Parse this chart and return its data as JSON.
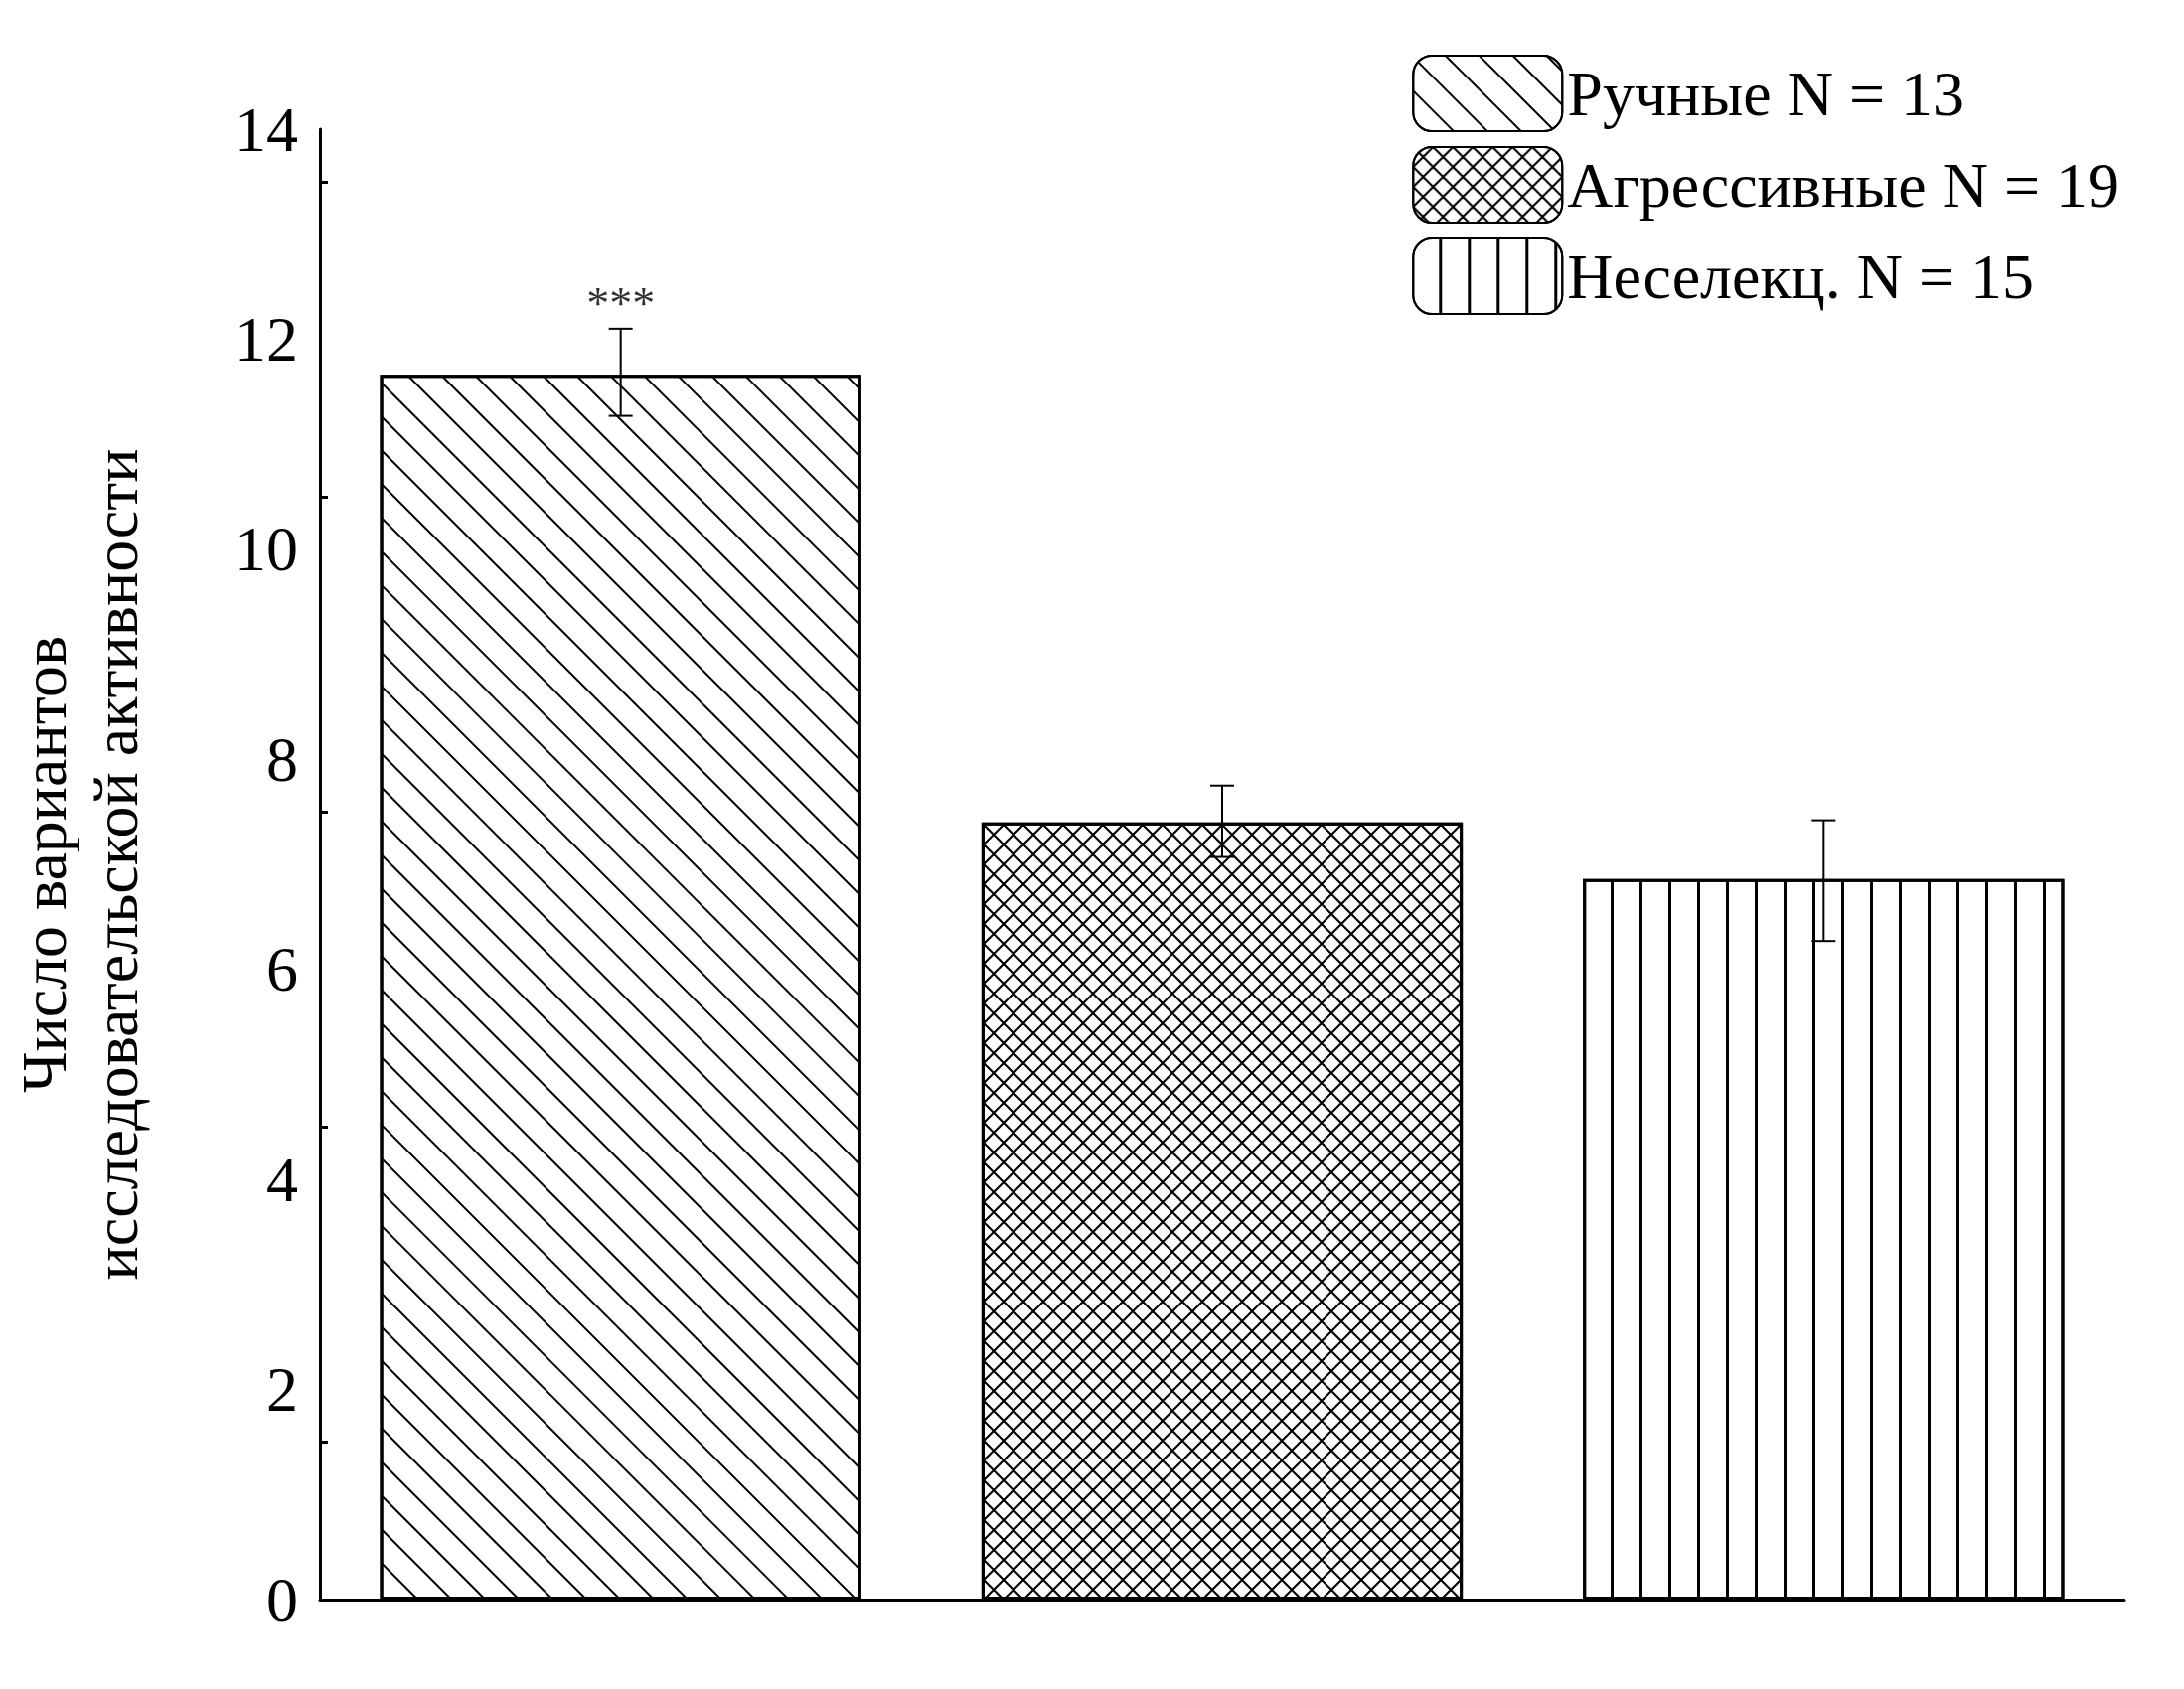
{
  "chart_data": {
    "type": "bar",
    "ylabel": "Число вариантов\nисследовательской активности",
    "categories": [
      null,
      null,
      null
    ],
    "series": [
      {
        "name": "Ручные N = 13",
        "color": "#ffffff",
        "values": [
          11.66,
          null,
          null
        ],
        "errors": [
          [
            11.27,
            12.1
          ],
          null,
          null
        ]
      },
      {
        "name": "Агрессивные N = 19",
        "color": "#ffffff",
        "values": [
          null,
          7.4,
          null
        ],
        "errors": [
          null,
          [
            7.07,
            7.75
          ],
          null
        ]
      },
      {
        "name": "Неселекц. N = 15",
        "color": "#ffffff",
        "values": [
          null,
          null,
          6.86
        ],
        "errors": [
          null,
          null,
          [
            6.27,
            7.42
          ]
        ]
      }
    ],
    "ylim": [
      0,
      14
    ],
    "yticks": [
      0,
      2,
      4,
      6,
      8,
      10,
      12,
      14
    ],
    "grid": false,
    "legend": "top right",
    "annotations": [
      {
        "text": "***",
        "y": 12.1
      }
    ]
  }
}
